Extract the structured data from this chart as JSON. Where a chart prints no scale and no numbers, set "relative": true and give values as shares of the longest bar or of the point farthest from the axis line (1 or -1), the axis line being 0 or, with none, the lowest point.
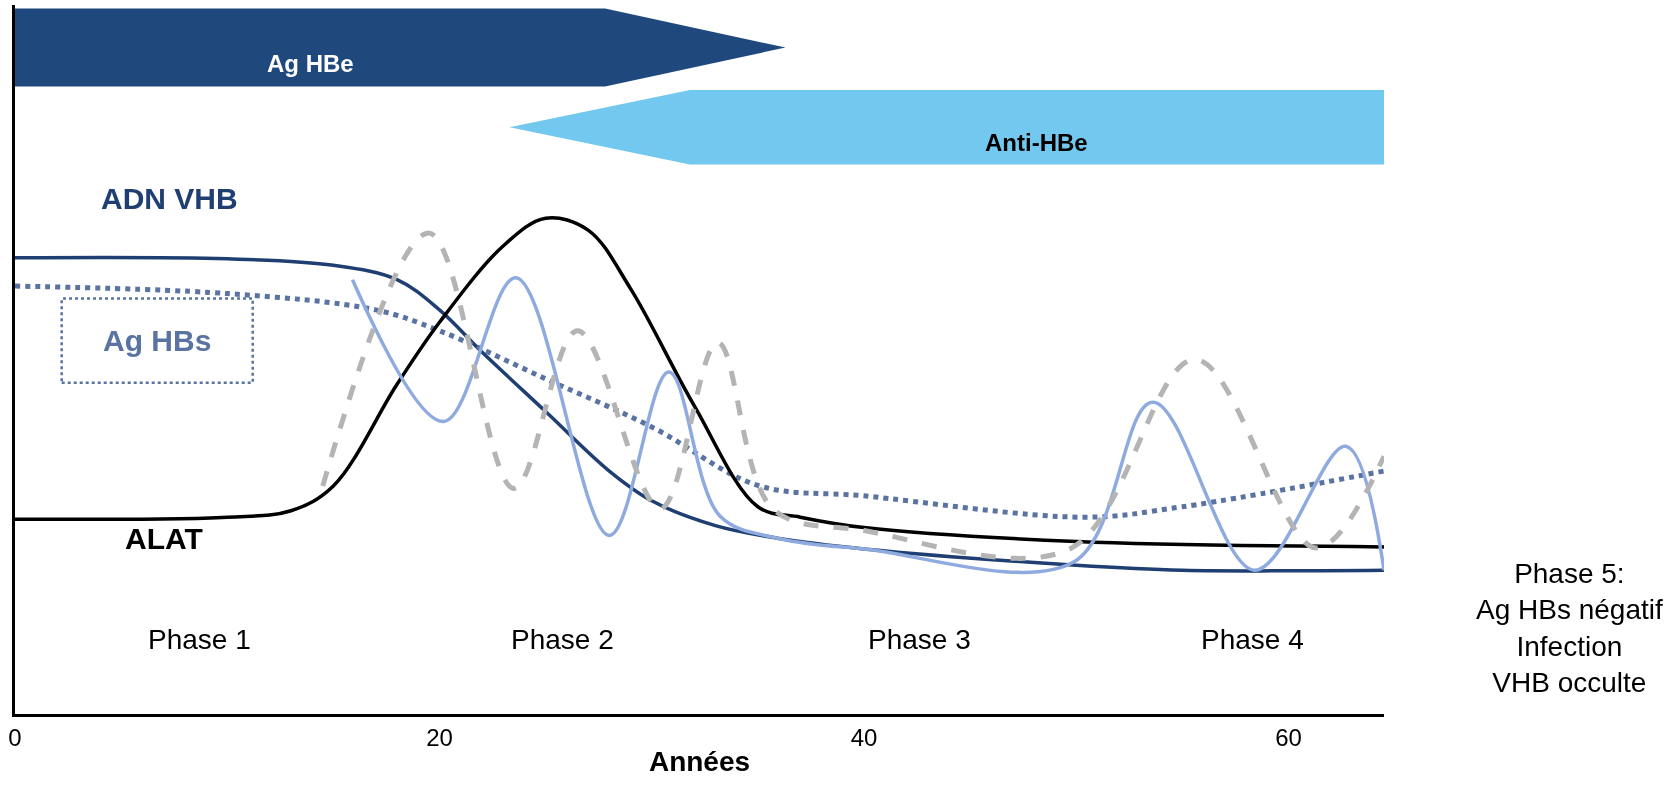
{
  "chart_data": {
    "type": "line",
    "relative": true,
    "xlabel": "Années",
    "xlim": [
      0,
      64.5
    ],
    "xticks": [
      0,
      20,
      40,
      60
    ],
    "series": [
      {
        "name": "ADN VHB",
        "color": "#1f3f73",
        "line_style": "solid",
        "x": [
          0,
          10,
          15,
          18,
          20,
          22,
          25,
          28,
          30,
          33,
          36,
          40,
          50,
          55,
          64.5
        ],
        "values": [
          0.92,
          0.918,
          0.905,
          0.876,
          0.815,
          0.73,
          0.61,
          0.49,
          0.43,
          0.38,
          0.354,
          0.333,
          0.3,
          0.29,
          0.29
        ]
      },
      {
        "name": "Ag HBs",
        "color": "#5a73a0",
        "line_style": "dotted",
        "x": [
          0,
          10,
          17,
          20,
          25,
          30,
          35,
          40,
          50.4,
          55,
          64.5
        ],
        "values": [
          0.863,
          0.848,
          0.815,
          0.773,
          0.676,
          0.579,
          0.461,
          0.44,
          0.397,
          0.418,
          0.49
        ]
      },
      {
        "name": "ALAT",
        "color": "#000000",
        "line_style": "solid",
        "x": [
          0,
          10,
          13,
          15,
          18,
          20,
          23,
          25,
          27,
          29,
          32,
          35,
          37,
          40,
          50,
          64.5
        ],
        "values": [
          0.393,
          0.397,
          0.41,
          0.46,
          0.665,
          0.79,
          0.944,
          1.0,
          0.976,
          0.858,
          0.622,
          0.418,
          0.397,
          0.376,
          0.348,
          0.337
        ]
      },
      {
        "color": "#8eaadf",
        "line_style": "solid",
        "x": [
          15.9,
          20.2,
          23.6,
          28,
          30.8,
          33.2,
          36,
          40,
          49.9,
          53.6,
          58.4,
          62.7,
          64.5
        ],
        "values": [
          0.876,
          0.59,
          0.88,
          0.36,
          0.69,
          0.4,
          0.354,
          0.333,
          0.307,
          0.629,
          0.29,
          0.54,
          0.29
        ]
      },
      {
        "color": "#b4b4b4",
        "line_style": "dashed",
        "x": [
          14.5,
          19.5,
          23.5,
          26.5,
          30.4,
          33.1,
          35.7,
          40,
          49.7,
          55.6,
          61.3,
          64.5
        ],
        "values": [
          0.46,
          0.97,
          0.455,
          0.773,
          0.414,
          0.749,
          0.414,
          0.37,
          0.333,
          0.715,
          0.335,
          0.52
        ]
      }
    ],
    "annotations": [
      "Ag HBe",
      "Anti-HBe",
      "Phase 1",
      "Phase 2",
      "Phase 3",
      "Phase 4",
      "Phase 5:\nAg HBs négatif\nInfection\nVHB occulte"
    ]
  }
}
